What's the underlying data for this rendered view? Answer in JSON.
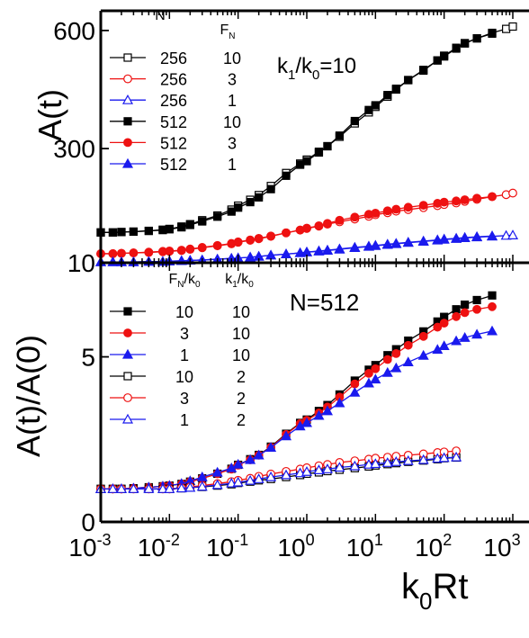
{
  "xlabel": {
    "base": "k",
    "sub": "0",
    "rest": "Rt"
  },
  "chart_data": [
    {
      "type": "scatter",
      "panel": "top",
      "xscale": "log",
      "xlim": [
        0.001,
        1000
      ],
      "ylim": [
        10,
        650
      ],
      "ylabel": "A(t)",
      "yticks": [
        {
          "value": 10,
          "label": "10"
        },
        {
          "value": 300,
          "label": "300"
        },
        {
          "value": 600,
          "label": "600"
        }
      ],
      "annotation": {
        "base1": "k",
        "sub1": "1",
        "mid": "/k",
        "sub2": "0",
        "rest": "=10"
      },
      "legend": {
        "placement": "top-left",
        "col1_header": "N",
        "col2_header": {
          "base": "F",
          "sub": "N"
        }
      },
      "series": [
        {
          "col1": "256",
          "col2": "10",
          "color": "#000000",
          "marker": "square",
          "filled": false,
          "x": [
            0.001,
            0.0015,
            0.002,
            0.003,
            0.005,
            0.008,
            0.01,
            0.015,
            0.02,
            0.03,
            0.05,
            0.08,
            0.1,
            0.15,
            0.2,
            0.3,
            0.5,
            0.8,
            1,
            1.5,
            2,
            3,
            5,
            8,
            10,
            15,
            20,
            30,
            50,
            80,
            100,
            150,
            200,
            300,
            500,
            800,
            1000
          ],
          "y": [
            87,
            87,
            88,
            89,
            91,
            94,
            96,
            102,
            108,
            118,
            130,
            145,
            155,
            170,
            182,
            205,
            238,
            262,
            272,
            292,
            306,
            330,
            364,
            392,
            406,
            432,
            450,
            474,
            500,
            524,
            534,
            554,
            567,
            580,
            594,
            604,
            610
          ]
        },
        {
          "col1": "256",
          "col2": "3",
          "color": "#ee1111",
          "marker": "circle",
          "filled": false,
          "x": [
            0.001,
            0.0015,
            0.002,
            0.003,
            0.005,
            0.008,
            0.01,
            0.015,
            0.02,
            0.03,
            0.05,
            0.08,
            0.1,
            0.15,
            0.2,
            0.3,
            0.5,
            0.8,
            1,
            1.5,
            2,
            3,
            5,
            8,
            10,
            15,
            20,
            30,
            50,
            80,
            100,
            150,
            200,
            300,
            500,
            800,
            1000
          ],
          "y": [
            33,
            33,
            34,
            35,
            37,
            39,
            40,
            42,
            45,
            49,
            54,
            59,
            63,
            68,
            72,
            78,
            86,
            93,
            97,
            103,
            108,
            114,
            121,
            128,
            132,
            137,
            141,
            145,
            150,
            155,
            158,
            162,
            166,
            171,
            178,
            183,
            187
          ]
        },
        {
          "col1": "256",
          "col2": "1",
          "color": "#1a1aee",
          "marker": "triangle",
          "filled": false,
          "x": [
            0.001,
            0.0015,
            0.002,
            0.003,
            0.005,
            0.008,
            0.01,
            0.015,
            0.02,
            0.03,
            0.05,
            0.08,
            0.1,
            0.15,
            0.2,
            0.3,
            0.5,
            0.8,
            1,
            1.5,
            2,
            3,
            5,
            8,
            10,
            15,
            20,
            30,
            50,
            80,
            100,
            150,
            200,
            300,
            500,
            800,
            1000
          ],
          "y": [
            12,
            12,
            12,
            12,
            13,
            13,
            14,
            15,
            16,
            17,
            19,
            21,
            22,
            24,
            26,
            29,
            32,
            35,
            37,
            39,
            41,
            44,
            48,
            51,
            53,
            56,
            58,
            61,
            64,
            67,
            69,
            71,
            73,
            75,
            77,
            79,
            80
          ]
        },
        {
          "col1": "512",
          "col2": "10",
          "color": "#000000",
          "marker": "square",
          "filled": true,
          "x": [
            0.001,
            0.0015,
            0.002,
            0.003,
            0.005,
            0.008,
            0.01,
            0.015,
            0.02,
            0.03,
            0.05,
            0.08,
            0.1,
            0.15,
            0.2,
            0.3,
            0.5,
            0.8,
            1,
            1.5,
            2,
            3,
            5,
            8,
            10,
            15,
            20,
            30,
            50,
            80,
            100,
            150,
            200,
            300,
            500
          ],
          "y": [
            87,
            87,
            88,
            89,
            91,
            93,
            95,
            100,
            106,
            115,
            127,
            140,
            150,
            164,
            176,
            197,
            231,
            259,
            268,
            290,
            306,
            333,
            370,
            398,
            410,
            436,
            452,
            474,
            498,
            524,
            536,
            556,
            568,
            580,
            592
          ]
        },
        {
          "col1": "512",
          "col2": "3",
          "color": "#ee1111",
          "marker": "circle",
          "filled": true,
          "x": [
            0.001,
            0.0015,
            0.002,
            0.003,
            0.005,
            0.008,
            0.01,
            0.015,
            0.02,
            0.03,
            0.05,
            0.08,
            0.1,
            0.15,
            0.2,
            0.3,
            0.5,
            0.8,
            1,
            1.5,
            2,
            3,
            5,
            8,
            10,
            15,
            20,
            30,
            50,
            80,
            100,
            150,
            200,
            300,
            500
          ],
          "y": [
            33,
            33,
            34,
            35,
            36,
            38,
            39,
            41,
            44,
            48,
            53,
            58,
            62,
            67,
            71,
            77,
            86,
            93,
            98,
            104,
            110,
            118,
            126,
            133,
            136,
            142,
            146,
            151,
            156,
            161,
            164,
            167,
            170,
            174,
            178
          ]
        },
        {
          "col1": "512",
          "col2": "1",
          "color": "#1a1aee",
          "marker": "triangle",
          "filled": true,
          "x": [
            0.001,
            0.0015,
            0.002,
            0.003,
            0.005,
            0.008,
            0.01,
            0.015,
            0.02,
            0.03,
            0.05,
            0.08,
            0.1,
            0.15,
            0.2,
            0.3,
            0.5,
            0.8,
            1,
            1.5,
            2,
            3,
            5,
            8,
            10,
            15,
            20,
            30,
            50,
            80,
            100,
            150,
            200,
            300,
            500
          ],
          "y": [
            12,
            12,
            12,
            12,
            13,
            13,
            14,
            15,
            16,
            17,
            19,
            21,
            22,
            24,
            26,
            29,
            32,
            35,
            37,
            40,
            42,
            45,
            49,
            52,
            54,
            57,
            59,
            62,
            65,
            68,
            70,
            72,
            74,
            76,
            78
          ]
        }
      ]
    },
    {
      "type": "scatter",
      "panel": "bottom",
      "xscale": "log",
      "xlim": [
        0.001,
        1000
      ],
      "ylim": [
        0,
        7.85
      ],
      "ylabel": "A(t)/A(0)",
      "xticks": [
        {
          "value": 0.001,
          "base": "10",
          "exp": "-3"
        },
        {
          "value": 0.01,
          "base": "10",
          "exp": "-2"
        },
        {
          "value": 0.1,
          "base": "10",
          "exp": "-1"
        },
        {
          "value": 1,
          "base": "10",
          "exp": "0"
        },
        {
          "value": 10,
          "base": "10",
          "exp": "1"
        },
        {
          "value": 100,
          "base": "10",
          "exp": "2"
        },
        {
          "value": 1000,
          "base": "10",
          "exp": "3"
        }
      ],
      "yticks": [
        {
          "value": 0,
          "label": "0"
        },
        {
          "value": 5,
          "label": "5"
        }
      ],
      "annotation": "N=512",
      "legend": {
        "placement": "top-left",
        "col1_header": {
          "base": "F",
          "sub1": "N",
          "mid": "/k",
          "sub2": "0"
        },
        "col2_header": {
          "base": "k",
          "sub1": "1",
          "mid": "/k",
          "sub2": "0"
        }
      },
      "series": [
        {
          "col1": "10",
          "col2": "10",
          "color": "#000000",
          "marker": "square",
          "filled": true,
          "x": [
            0.001,
            0.0015,
            0.002,
            0.003,
            0.005,
            0.008,
            0.01,
            0.015,
            0.02,
            0.03,
            0.05,
            0.08,
            0.1,
            0.15,
            0.2,
            0.3,
            0.5,
            0.8,
            1,
            1.5,
            2,
            3,
            5,
            8,
            10,
            15,
            20,
            30,
            50,
            80,
            100,
            150,
            200,
            300,
            500
          ],
          "y": [
            1.0,
            1.0,
            1.0,
            1.02,
            1.05,
            1.08,
            1.1,
            1.15,
            1.22,
            1.32,
            1.46,
            1.61,
            1.73,
            1.9,
            2.03,
            2.28,
            2.67,
            3.0,
            3.1,
            3.36,
            3.54,
            3.86,
            4.28,
            4.61,
            4.75,
            5.05,
            5.23,
            5.49,
            5.77,
            6.07,
            6.21,
            6.44,
            6.58,
            6.72,
            6.86
          ]
        },
        {
          "col1": "3",
          "col2": "10",
          "color": "#ee1111",
          "marker": "circle",
          "filled": true,
          "x": [
            0.001,
            0.0015,
            0.002,
            0.003,
            0.005,
            0.008,
            0.01,
            0.015,
            0.02,
            0.03,
            0.05,
            0.08,
            0.1,
            0.15,
            0.2,
            0.3,
            0.5,
            0.8,
            1,
            1.5,
            2,
            3,
            5,
            8,
            10,
            15,
            20,
            30,
            50,
            80,
            100,
            150,
            200,
            300,
            500
          ],
          "y": [
            1.0,
            1.0,
            1.0,
            1.02,
            1.05,
            1.08,
            1.1,
            1.15,
            1.22,
            1.32,
            1.46,
            1.6,
            1.72,
            1.88,
            2.02,
            2.26,
            2.65,
            2.98,
            3.08,
            3.3,
            3.48,
            3.78,
            4.18,
            4.5,
            4.64,
            4.92,
            5.1,
            5.35,
            5.62,
            5.9,
            6.02,
            6.22,
            6.34,
            6.44,
            6.52
          ]
        },
        {
          "col1": "1",
          "col2": "10",
          "color": "#1a1aee",
          "marker": "triangle",
          "filled": true,
          "x": [
            0.001,
            0.0015,
            0.002,
            0.003,
            0.005,
            0.008,
            0.01,
            0.015,
            0.02,
            0.03,
            0.05,
            0.08,
            0.1,
            0.15,
            0.2,
            0.3,
            0.5,
            0.8,
            1,
            1.5,
            2,
            3,
            5,
            8,
            10,
            15,
            20,
            30,
            50,
            80,
            100,
            150,
            200,
            300,
            500
          ],
          "y": [
            1.0,
            1.0,
            1.0,
            1.02,
            1.05,
            1.08,
            1.1,
            1.16,
            1.24,
            1.36,
            1.5,
            1.63,
            1.74,
            1.88,
            2.02,
            2.25,
            2.6,
            2.9,
            3.0,
            3.22,
            3.36,
            3.6,
            3.92,
            4.2,
            4.32,
            4.52,
            4.66,
            4.84,
            5.04,
            5.22,
            5.33,
            5.48,
            5.58,
            5.68,
            5.78
          ]
        },
        {
          "col1": "10",
          "col2": "2",
          "color": "#000000",
          "marker": "square",
          "filled": false,
          "x": [
            0.001,
            0.0015,
            0.002,
            0.003,
            0.005,
            0.008,
            0.01,
            0.015,
            0.02,
            0.03,
            0.05,
            0.08,
            0.1,
            0.15,
            0.2,
            0.3,
            0.5,
            0.8,
            1,
            1.5,
            2,
            3,
            5,
            8,
            10,
            15,
            20,
            30,
            50,
            80,
            100,
            150
          ],
          "y": [
            1.0,
            1.0,
            1.0,
            1.0,
            1.0,
            1.0,
            1.0,
            1.02,
            1.04,
            1.06,
            1.1,
            1.14,
            1.18,
            1.22,
            1.26,
            1.3,
            1.36,
            1.42,
            1.46,
            1.5,
            1.54,
            1.58,
            1.63,
            1.68,
            1.71,
            1.75,
            1.78,
            1.82,
            1.86,
            1.9,
            1.93,
            1.95
          ]
        },
        {
          "col1": "3",
          "col2": "2",
          "color": "#ee1111",
          "marker": "circle",
          "filled": false,
          "x": [
            0.001,
            0.0015,
            0.002,
            0.003,
            0.005,
            0.008,
            0.01,
            0.015,
            0.02,
            0.03,
            0.05,
            0.08,
            0.1,
            0.15,
            0.2,
            0.3,
            0.5,
            0.8,
            1,
            1.5,
            2,
            3,
            5,
            8,
            10,
            15,
            20,
            30,
            50,
            80,
            100,
            150
          ],
          "y": [
            1.0,
            1.0,
            1.0,
            1.0,
            1.0,
            1.0,
            1.0,
            1.03,
            1.06,
            1.1,
            1.16,
            1.22,
            1.26,
            1.32,
            1.38,
            1.45,
            1.53,
            1.6,
            1.64,
            1.7,
            1.74,
            1.8,
            1.85,
            1.9,
            1.93,
            1.96,
            1.99,
            2.02,
            2.06,
            2.1,
            2.12,
            2.15
          ]
        },
        {
          "col1": "1",
          "col2": "2",
          "color": "#1a1aee",
          "marker": "triangle",
          "filled": false,
          "x": [
            0.001,
            0.0015,
            0.002,
            0.003,
            0.005,
            0.008,
            0.01,
            0.015,
            0.02,
            0.03,
            0.05,
            0.08,
            0.1,
            0.15,
            0.2,
            0.3,
            0.5,
            0.8,
            1,
            1.5,
            2,
            3,
            5,
            8,
            10,
            15,
            20,
            30,
            50,
            80,
            100,
            150
          ],
          "y": [
            1.0,
            1.0,
            1.0,
            1.0,
            1.0,
            1.0,
            1.0,
            1.02,
            1.04,
            1.07,
            1.12,
            1.17,
            1.2,
            1.25,
            1.3,
            1.36,
            1.42,
            1.48,
            1.52,
            1.57,
            1.6,
            1.65,
            1.69,
            1.74,
            1.76,
            1.79,
            1.82,
            1.85,
            1.88,
            1.92,
            1.94,
            1.96
          ]
        }
      ]
    }
  ]
}
